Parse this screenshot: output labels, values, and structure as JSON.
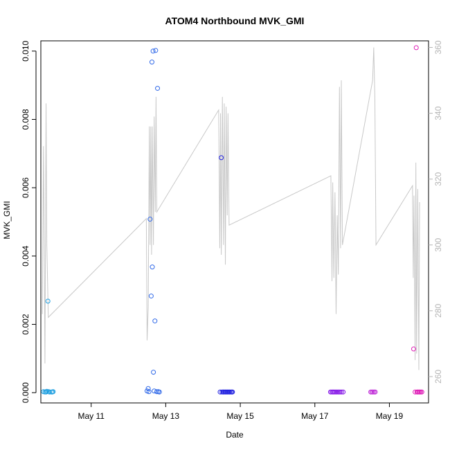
{
  "chart_data": {
    "type": "scatter",
    "title": "ATOM4 Northbound MVK_GMI",
    "xlabel": "Date",
    "ylabel": "MVK_GMI",
    "x_ticks": [
      {
        "x": 11,
        "label": "May 11"
      },
      {
        "x": 13,
        "label": "May 13"
      },
      {
        "x": 15,
        "label": "May 15"
      },
      {
        "x": 17,
        "label": "May 17"
      },
      {
        "x": 19,
        "label": "May 19"
      }
    ],
    "xlim": [
      9.65,
      20.05
    ],
    "ylim": [
      -0.0003,
      0.0103
    ],
    "y_ticks": [
      "0.000",
      "0.002",
      "0.004",
      "0.006",
      "0.008",
      "0.010"
    ],
    "y2lim": [
      252,
      362
    ],
    "y2_ticks": [
      "260",
      "280",
      "300",
      "320",
      "340",
      "360"
    ],
    "grid": false,
    "series": [
      {
        "kind": "points",
        "color": "#1e9fe0",
        "points": [
          [
            9.72,
            3e-05
          ],
          [
            9.76,
            2e-05
          ],
          [
            9.79,
            2e-05
          ],
          [
            9.81,
            4e-05
          ],
          [
            9.84,
            0.00268
          ],
          [
            9.86,
            3e-05
          ],
          [
            9.88,
            2e-05
          ],
          [
            9.93,
            2e-05
          ],
          [
            9.96,
            2e-05
          ],
          [
            9.98,
            3e-05
          ]
        ]
      },
      {
        "kind": "points",
        "color": "#2f68e8",
        "points": [
          [
            12.5,
            5e-05
          ],
          [
            12.53,
            0.00012
          ],
          [
            12.55,
            3e-05
          ],
          [
            12.58,
            0.00508
          ],
          [
            12.61,
            0.00283
          ],
          [
            12.63,
            0.00968
          ],
          [
            12.64,
            0.00368
          ],
          [
            12.66,
            0.01
          ],
          [
            12.67,
            0.0006
          ],
          [
            12.69,
            5e-05
          ],
          [
            12.71,
            0.0021
          ],
          [
            12.73,
            0.01002
          ],
          [
            12.76,
            3e-05
          ],
          [
            12.78,
            0.00891
          ],
          [
            12.8,
            3e-05
          ],
          [
            12.83,
            2e-05
          ]
        ]
      },
      {
        "kind": "points",
        "color": "#2222e0",
        "points": [
          [
            14.46,
            2e-05
          ],
          [
            14.49,
            0.00688
          ],
          [
            14.51,
            2e-05
          ],
          [
            14.54,
            2e-05
          ],
          [
            14.56,
            2e-05
          ],
          [
            14.59,
            2e-05
          ],
          [
            14.61,
            2e-05
          ],
          [
            14.64,
            2e-05
          ],
          [
            14.66,
            2e-05
          ],
          [
            14.69,
            2e-05
          ],
          [
            14.71,
            2e-05
          ],
          [
            14.74,
            2e-05
          ],
          [
            14.77,
            2e-05
          ],
          [
            14.79,
            2e-05
          ]
        ]
      },
      {
        "kind": "points",
        "color": "#8a20e8",
        "points": [
          [
            17.42,
            2e-05
          ],
          [
            17.45,
            2e-05
          ],
          [
            17.48,
            2e-05
          ],
          [
            17.5,
            2e-05
          ],
          [
            17.53,
            2e-05
          ],
          [
            17.56,
            2e-05
          ],
          [
            17.59,
            2e-05
          ],
          [
            17.62,
            2e-05
          ],
          [
            17.65,
            2e-05
          ],
          [
            17.68,
            2e-05
          ],
          [
            17.72,
            2e-05
          ],
          [
            17.76,
            2e-05
          ]
        ]
      },
      {
        "kind": "points",
        "color": "#c030d8",
        "points": [
          [
            18.5,
            2e-05
          ],
          [
            18.53,
            2e-05
          ],
          [
            18.56,
            2e-05
          ],
          [
            18.59,
            2e-05
          ],
          [
            18.62,
            2e-05
          ]
        ]
      },
      {
        "kind": "points",
        "color": "#e020b8",
        "points": [
          [
            19.65,
            0.00128
          ],
          [
            19.69,
            2e-05
          ],
          [
            19.72,
            0.0101
          ],
          [
            19.74,
            2e-05
          ],
          [
            19.76,
            2e-05
          ],
          [
            19.79,
            2e-05
          ],
          [
            19.81,
            2e-05
          ],
          [
            19.84,
            2e-05
          ],
          [
            19.87,
            2e-05
          ]
        ]
      },
      {
        "kind": "line",
        "axis": "right",
        "color": "#c8c8c8",
        "points": [
          [
            9.69,
            279
          ],
          [
            9.72,
            330
          ],
          [
            9.74,
            300
          ],
          [
            9.76,
            264
          ],
          [
            9.79,
            343
          ],
          [
            9.81,
            300
          ],
          [
            9.85,
            278
          ],
          [
            12.48,
            308
          ],
          [
            12.5,
            271
          ],
          [
            12.53,
            281
          ],
          [
            12.56,
            336
          ],
          [
            12.58,
            300
          ],
          [
            12.6,
            336
          ],
          [
            12.62,
            297
          ],
          [
            12.64,
            336
          ],
          [
            12.67,
            300
          ],
          [
            12.69,
            339
          ],
          [
            12.72,
            310
          ],
          [
            12.74,
            345
          ],
          [
            12.76,
            310
          ],
          [
            14.42,
            341
          ],
          [
            14.45,
            299
          ],
          [
            14.47,
            340
          ],
          [
            14.49,
            297
          ],
          [
            14.52,
            345
          ],
          [
            14.55,
            300
          ],
          [
            14.57,
            343
          ],
          [
            14.6,
            294
          ],
          [
            14.62,
            342
          ],
          [
            14.65,
            309
          ],
          [
            14.67,
            340
          ],
          [
            14.7,
            306
          ],
          [
            17.43,
            321
          ],
          [
            17.46,
            289
          ],
          [
            17.48,
            319
          ],
          [
            17.51,
            290
          ],
          [
            17.54,
            316
          ],
          [
            17.57,
            279
          ],
          [
            17.6,
            309
          ],
          [
            17.63,
            291
          ],
          [
            17.66,
            348
          ],
          [
            17.69,
            299
          ],
          [
            17.71,
            350
          ],
          [
            17.74,
            300
          ],
          [
            18.55,
            350
          ],
          [
            18.58,
            360
          ],
          [
            18.61,
            345
          ],
          [
            18.64,
            300
          ],
          [
            19.62,
            318
          ],
          [
            19.64,
            290
          ],
          [
            19.66,
            315
          ],
          [
            19.69,
            265
          ],
          [
            19.71,
            325
          ],
          [
            19.73,
            267
          ],
          [
            19.76,
            317
          ],
          [
            19.79,
            262
          ],
          [
            19.81,
            313
          ]
        ]
      }
    ]
  }
}
